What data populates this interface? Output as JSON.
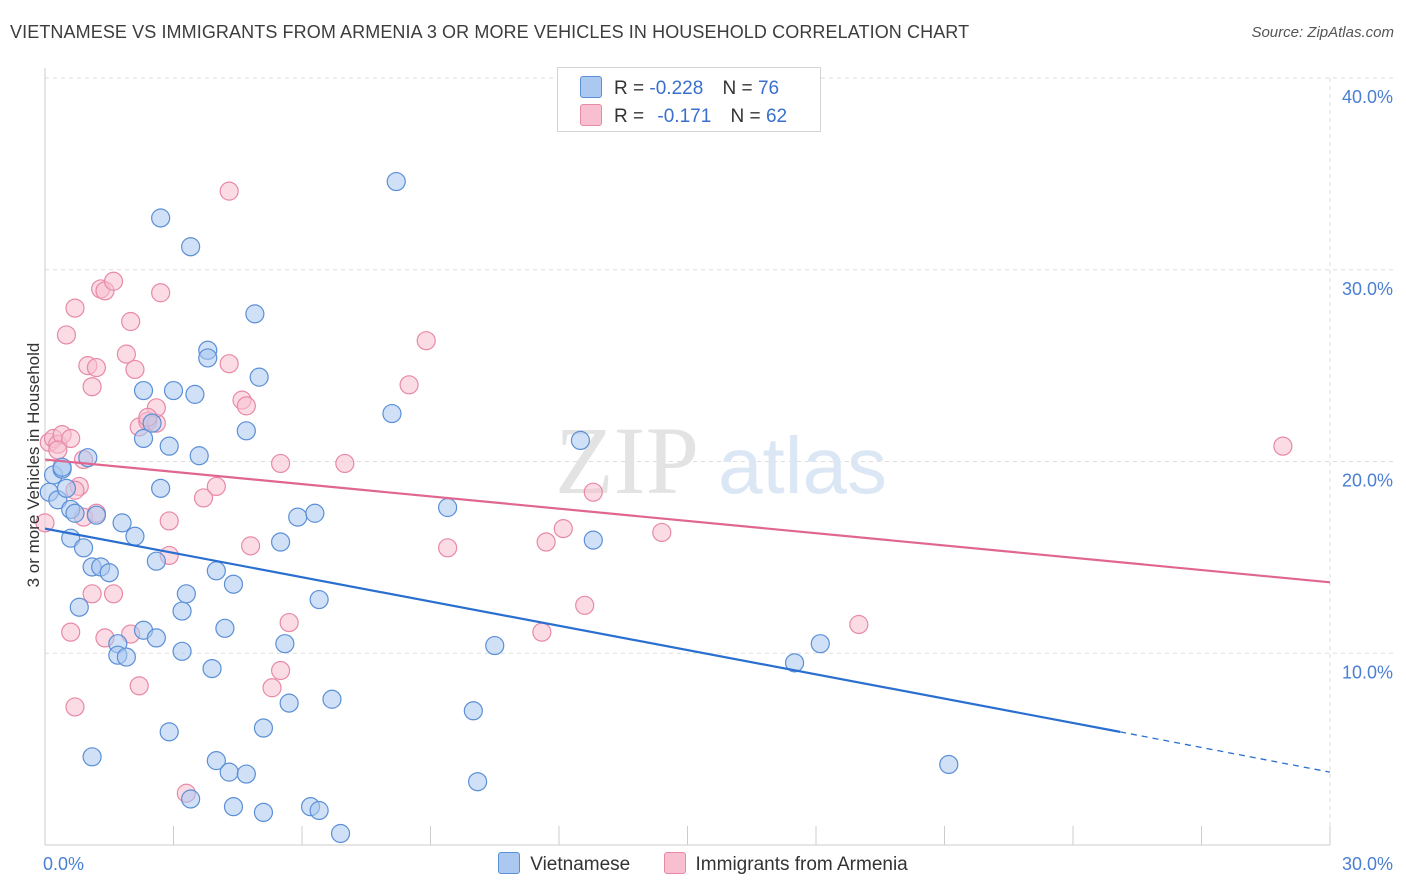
{
  "title": "VIETNAMESE VS IMMIGRANTS FROM ARMENIA 3 OR MORE VEHICLES IN HOUSEHOLD CORRELATION CHART",
  "source": "Source: ZipAtlas.com",
  "watermark": {
    "zip": "ZIP",
    "atlas": "atlas"
  },
  "legend": {
    "rows": [
      {
        "r_label": "R =",
        "r_value": "-0.228",
        "n_label": "N =",
        "n_value": "76"
      },
      {
        "r_label": "R =",
        "r_value": "-0.171",
        "n_label": "N =",
        "n_value": "62"
      }
    ]
  },
  "bottom_legend": {
    "series1": "Vietnamese",
    "series2": "Immigrants from Armenia"
  },
  "colors": {
    "blue_fill": "#aac8f0",
    "blue_stroke": "#5b8fd6",
    "blue_line": "#2a6fd0",
    "pink_fill": "#f7bfd0",
    "pink_stroke": "#e889a6",
    "pink_line": "#e0668f",
    "tick": "#4a7fd4",
    "grid": "#dddddd"
  },
  "chart_data": {
    "type": "scatter",
    "title": "VIETNAMESE VS IMMIGRANTS FROM ARMENIA 3 OR MORE VEHICLES IN HOUSEHOLD CORRELATION CHART",
    "xlabel": "",
    "ylabel": "3 or more Vehicles in Household",
    "xlim": [
      0,
      30
    ],
    "ylim": [
      0,
      40
    ],
    "x_tick_labels": [
      "0.0%",
      "30.0%"
    ],
    "y_ticks": [
      10,
      20,
      30,
      40
    ],
    "y_tick_labels": [
      "10.0%",
      "20.0%",
      "30.0%",
      "40.0%"
    ],
    "series": [
      {
        "name": "Vietnamese",
        "R": -0.228,
        "N": 76,
        "trend": {
          "x0": 0,
          "y0": 16.5,
          "x1": 25.1,
          "y1": 5.9,
          "dash_x1": 30,
          "dash_y1": 3.8
        },
        "points": [
          [
            0.1,
            18.4
          ],
          [
            0.2,
            19.3
          ],
          [
            0.3,
            18.0
          ],
          [
            0.4,
            19.6
          ],
          [
            0.5,
            18.6
          ],
          [
            0.6,
            17.5
          ],
          [
            0.7,
            17.3
          ],
          [
            0.6,
            16.0
          ],
          [
            0.9,
            15.5
          ],
          [
            1.2,
            17.2
          ],
          [
            1.0,
            20.2
          ],
          [
            1.1,
            14.5
          ],
          [
            1.3,
            14.5
          ],
          [
            1.5,
            14.2
          ],
          [
            1.8,
            16.8
          ],
          [
            2.1,
            16.1
          ],
          [
            2.5,
            22.0
          ],
          [
            2.3,
            21.2
          ],
          [
            2.3,
            23.7
          ],
          [
            2.6,
            14.8
          ],
          [
            2.7,
            18.6
          ],
          [
            2.9,
            20.8
          ],
          [
            3.0,
            23.7
          ],
          [
            3.2,
            12.2
          ],
          [
            3.3,
            13.1
          ],
          [
            3.5,
            23.5
          ],
          [
            3.6,
            20.3
          ],
          [
            3.8,
            25.8
          ],
          [
            3.8,
            25.4
          ],
          [
            4.0,
            14.3
          ],
          [
            4.2,
            11.3
          ],
          [
            4.4,
            13.6
          ],
          [
            4.7,
            21.6
          ],
          [
            4.9,
            27.7
          ],
          [
            5.0,
            24.4
          ],
          [
            5.5,
            15.8
          ],
          [
            5.9,
            17.1
          ],
          [
            6.3,
            17.3
          ],
          [
            6.4,
            12.8
          ],
          [
            5.6,
            10.5
          ],
          [
            1.7,
            10.5
          ],
          [
            1.7,
            9.9
          ],
          [
            1.9,
            9.8
          ],
          [
            2.3,
            11.2
          ],
          [
            2.6,
            10.8
          ],
          [
            3.2,
            10.1
          ],
          [
            2.9,
            5.9
          ],
          [
            3.4,
            2.4
          ],
          [
            4.0,
            4.4
          ],
          [
            4.3,
            3.8
          ],
          [
            4.4,
            2.0
          ],
          [
            4.7,
            3.7
          ],
          [
            5.1,
            6.1
          ],
          [
            5.1,
            1.7
          ],
          [
            5.7,
            7.4
          ],
          [
            6.2,
            2.0
          ],
          [
            6.4,
            1.8
          ],
          [
            6.7,
            7.6
          ],
          [
            6.9,
            0.6
          ],
          [
            8.2,
            34.6
          ],
          [
            8.1,
            22.5
          ],
          [
            9.4,
            17.6
          ],
          [
            10.0,
            7.0
          ],
          [
            10.1,
            3.3
          ],
          [
            10.5,
            10.4
          ],
          [
            12.5,
            21.1
          ],
          [
            12.8,
            15.9
          ],
          [
            17.5,
            9.5
          ],
          [
            18.1,
            10.5
          ],
          [
            21.1,
            4.2
          ],
          [
            1.1,
            4.6
          ],
          [
            2.7,
            32.7
          ],
          [
            3.4,
            31.2
          ],
          [
            0.4,
            19.7
          ],
          [
            3.9,
            9.2
          ],
          [
            0.8,
            12.4
          ]
        ]
      },
      {
        "name": "Immigrants from Armenia",
        "R": -0.171,
        "N": 62,
        "trend": {
          "x0": 0,
          "y0": 20.1,
          "x1": 30,
          "y1": 13.7
        },
        "points": [
          [
            0.0,
            16.8
          ],
          [
            0.1,
            21.0
          ],
          [
            0.2,
            21.2
          ],
          [
            0.3,
            20.9
          ],
          [
            0.4,
            21.4
          ],
          [
            0.5,
            26.6
          ],
          [
            0.6,
            21.2
          ],
          [
            0.7,
            28.0
          ],
          [
            0.8,
            18.7
          ],
          [
            0.9,
            17.1
          ],
          [
            1.0,
            25.0
          ],
          [
            1.1,
            23.9
          ],
          [
            1.2,
            24.9
          ],
          [
            1.3,
            29.0
          ],
          [
            1.4,
            28.9
          ],
          [
            1.6,
            29.4
          ],
          [
            1.9,
            25.6
          ],
          [
            2.0,
            27.3
          ],
          [
            2.1,
            24.8
          ],
          [
            2.2,
            21.8
          ],
          [
            2.4,
            22.1
          ],
          [
            2.6,
            22.0
          ],
          [
            2.6,
            22.8
          ],
          [
            2.7,
            28.8
          ],
          [
            2.9,
            16.9
          ],
          [
            2.9,
            15.1
          ],
          [
            3.7,
            18.1
          ],
          [
            4.0,
            18.7
          ],
          [
            4.3,
            34.1
          ],
          [
            4.3,
            25.1
          ],
          [
            4.6,
            23.2
          ],
          [
            4.7,
            22.9
          ],
          [
            4.8,
            15.6
          ],
          [
            5.3,
            8.2
          ],
          [
            5.5,
            9.1
          ],
          [
            5.5,
            19.9
          ],
          [
            5.7,
            11.6
          ],
          [
            0.6,
            11.1
          ],
          [
            0.7,
            7.2
          ],
          [
            1.1,
            13.1
          ],
          [
            1.4,
            10.8
          ],
          [
            1.6,
            13.1
          ],
          [
            2.0,
            11.0
          ],
          [
            2.2,
            8.3
          ],
          [
            3.3,
            2.7
          ],
          [
            7.0,
            19.9
          ],
          [
            8.5,
            24.0
          ],
          [
            8.9,
            26.3
          ],
          [
            9.4,
            15.5
          ],
          [
            11.6,
            11.1
          ],
          [
            11.7,
            15.8
          ],
          [
            12.1,
            16.5
          ],
          [
            12.6,
            12.5
          ],
          [
            12.8,
            18.4
          ],
          [
            14.4,
            16.3
          ],
          [
            19.0,
            11.5
          ],
          [
            28.9,
            20.8
          ],
          [
            0.9,
            20.1
          ],
          [
            1.2,
            17.3
          ],
          [
            0.3,
            20.6
          ],
          [
            2.4,
            22.3
          ],
          [
            0.7,
            18.5
          ]
        ]
      }
    ]
  }
}
